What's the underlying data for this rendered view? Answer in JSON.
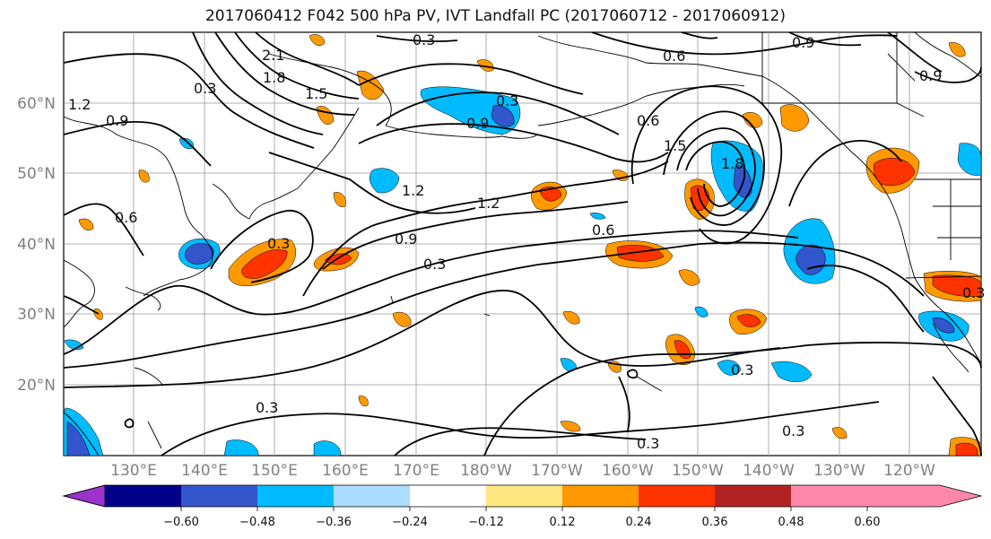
{
  "title": "2017060412 F042 500 hPa PV, IVT Landfall PC (2017060712 - 2017060912)",
  "lat_labels": [
    "60°N",
    "50°N",
    "40°N",
    "30°N",
    "20°N"
  ],
  "lon_labels": [
    "130°E",
    "140°E",
    "150°E",
    "160°E",
    "170°E",
    "180°W",
    "170°W",
    "160°W",
    "150°W",
    "140°W",
    "130°W",
    "120°W"
  ],
  "colorbar": {
    "colors": [
      "#9933cc",
      "#000088",
      "#3355cc",
      "#00bbff",
      "#aaddff",
      "#ffffff",
      "#ffe680",
      "#ff9900",
      "#ff3300",
      "#b22222",
      "#ff88aa"
    ],
    "tick_labels": [
      "−0.60",
      "−0.48",
      "−0.36",
      "−0.24",
      "−0.12",
      "0.12",
      "0.24",
      "0.36",
      "0.48",
      "0.60"
    ]
  },
  "contour_labels": [
    "2.1",
    "1.8",
    "1.5",
    "1.2",
    "0.9",
    "0.6",
    "0.3",
    "0.3",
    "0.6",
    "0.9",
    "1.2",
    "0.9",
    "0.6",
    "0.3",
    "0.3",
    "0.3",
    "1.2",
    "0.9",
    "1.5",
    "1.8",
    "0.3",
    "0.3",
    "0.3",
    "0.6",
    "0.9",
    "0.3",
    "0.3"
  ]
}
